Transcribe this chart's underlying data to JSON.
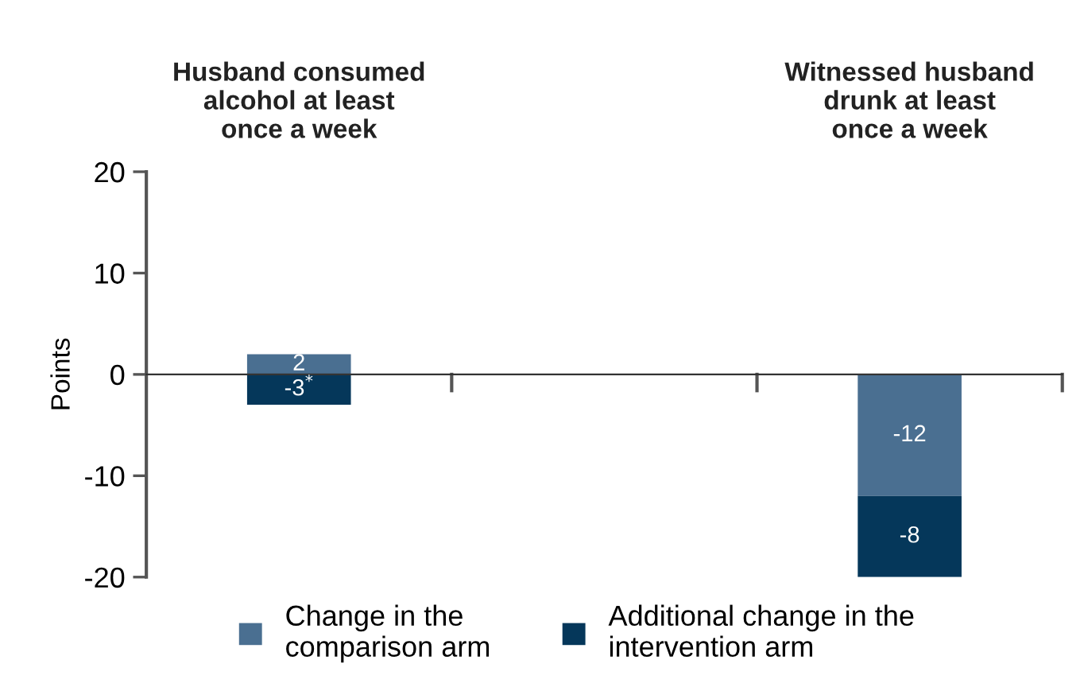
{
  "chart_data": {
    "type": "bar",
    "stacked": true,
    "categories": [
      "Husband consumed\nalcohol at least\nonce a week",
      "Witnessed husband\ndrunk at least\nonce a week"
    ],
    "ylabel": "Points",
    "ylim": [
      -20,
      20
    ],
    "yticks": [
      -20,
      -10,
      0,
      10,
      20
    ],
    "legend": "bottom",
    "series": [
      {
        "name": "Change in the\ncomparison arm",
        "color": "#4a6f91",
        "values": [
          2,
          -12
        ],
        "value_labels": [
          "2",
          "-12"
        ]
      },
      {
        "name": "Additional change in the\nintervention arm",
        "color": "#05375a",
        "values": [
          -3,
          -8
        ],
        "value_labels": [
          "-3$^{*}$",
          "-8"
        ]
      }
    ]
  }
}
